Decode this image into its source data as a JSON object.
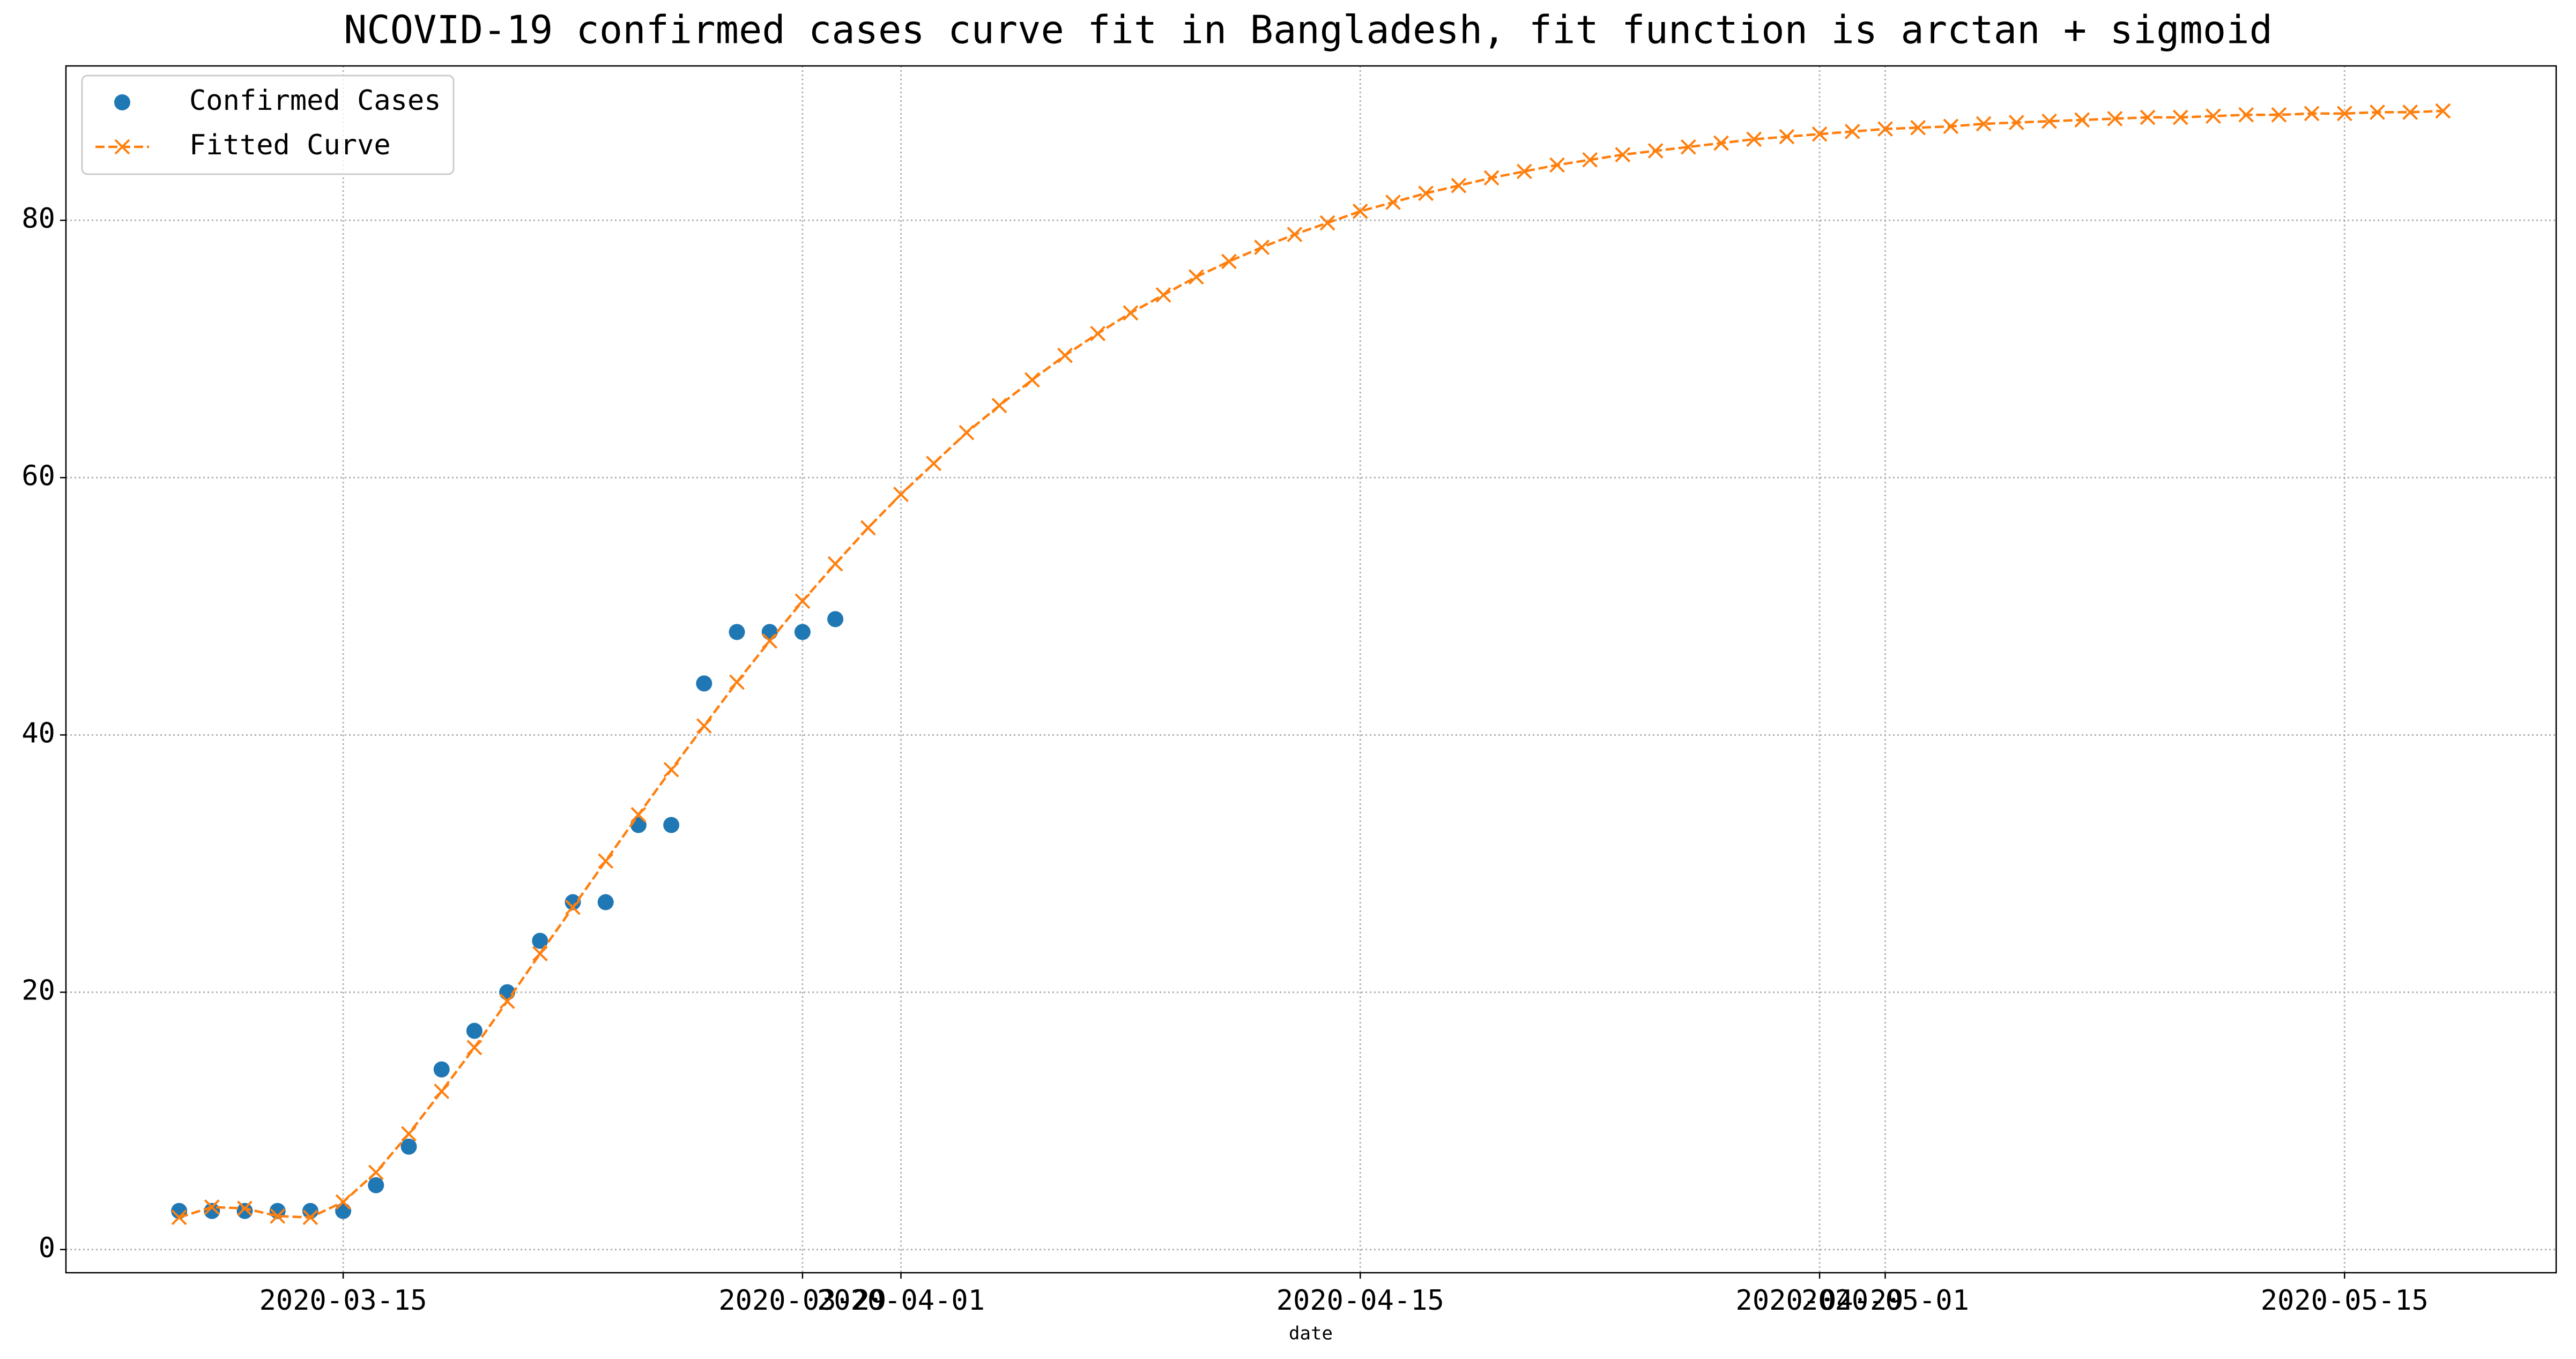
{
  "chart_data": {
    "type": "line",
    "title": "NCOVID-19 confirmed cases curve fit in Bangladesh, fit function is arctan + sigmoid",
    "x_label": "date",
    "xlim": [
      "2020-03-06T13:12",
      "2020-05-21T10:48"
    ],
    "xticks": [
      "2020-03-15",
      "2020-03-29",
      "2020-04-01",
      "2020-04-15",
      "2020-04-29",
      "2020-05-01",
      "2020-05-15"
    ],
    "ylim": [
      -1.8,
      92.0
    ],
    "yticks": [
      0,
      20,
      40,
      60,
      80
    ],
    "grid": true,
    "legend": "upper left",
    "series": [
      {
        "name": "Confirmed Cases",
        "color": "#1f77b4",
        "marker": "circle",
        "linestyle": "none",
        "x": [
          "2020-03-10",
          "2020-03-11",
          "2020-03-12",
          "2020-03-13",
          "2020-03-14",
          "2020-03-15",
          "2020-03-16",
          "2020-03-17",
          "2020-03-18",
          "2020-03-19",
          "2020-03-20",
          "2020-03-21",
          "2020-03-22",
          "2020-03-23",
          "2020-03-24",
          "2020-03-25",
          "2020-03-26",
          "2020-03-27",
          "2020-03-28",
          "2020-03-29",
          "2020-03-30"
        ],
        "values": [
          3,
          3,
          3,
          3,
          3,
          3,
          5,
          8,
          14,
          17,
          20,
          24,
          27,
          27,
          33,
          33,
          44,
          48,
          48,
          48,
          49
        ]
      },
      {
        "name": "Fitted Curve",
        "color": "#ff7f0e",
        "marker": "x",
        "linestyle": "dashed",
        "x": [
          "2020-03-10",
          "2020-03-11",
          "2020-03-12",
          "2020-03-13",
          "2020-03-14",
          "2020-03-15",
          "2020-03-16",
          "2020-03-17",
          "2020-03-18",
          "2020-03-19",
          "2020-03-20",
          "2020-03-21",
          "2020-03-22",
          "2020-03-23",
          "2020-03-24",
          "2020-03-25",
          "2020-03-26",
          "2020-03-27",
          "2020-03-28",
          "2020-03-29",
          "2020-03-30",
          "2020-03-31",
          "2020-04-01",
          "2020-04-02",
          "2020-04-03",
          "2020-04-04",
          "2020-04-05",
          "2020-04-06",
          "2020-04-07",
          "2020-04-08",
          "2020-04-09",
          "2020-04-10",
          "2020-04-11",
          "2020-04-12",
          "2020-04-13",
          "2020-04-14",
          "2020-04-15",
          "2020-04-16",
          "2020-04-17",
          "2020-04-18",
          "2020-04-19",
          "2020-04-20",
          "2020-04-21",
          "2020-04-22",
          "2020-04-23",
          "2020-04-24",
          "2020-04-25",
          "2020-04-26",
          "2020-04-27",
          "2020-04-28",
          "2020-04-29",
          "2020-04-30",
          "2020-05-01",
          "2020-05-02",
          "2020-05-03",
          "2020-05-04",
          "2020-05-05",
          "2020-05-06",
          "2020-05-07",
          "2020-05-08",
          "2020-05-09",
          "2020-05-10",
          "2020-05-11",
          "2020-05-12",
          "2020-05-13",
          "2020-05-14",
          "2020-05-15",
          "2020-05-16",
          "2020-05-17",
          "2020-05-18"
        ],
        "values": [
          2.5,
          3.3,
          3.2,
          2.6,
          2.5,
          3.7,
          6.0,
          9.0,
          12.3,
          15.7,
          19.3,
          23.0,
          26.6,
          30.2,
          33.8,
          37.3,
          40.7,
          44.1,
          47.3,
          50.4,
          53.3,
          56.1,
          58.7,
          61.1,
          63.5,
          65.6,
          67.6,
          69.5,
          71.2,
          72.8,
          74.2,
          75.6,
          76.8,
          77.9,
          78.9,
          79.8,
          80.7,
          81.4,
          82.1,
          82.7,
          83.3,
          83.8,
          84.3,
          84.7,
          85.1,
          85.4,
          85.7,
          86.0,
          86.3,
          86.5,
          86.7,
          86.9,
          87.1,
          87.2,
          87.3,
          87.5,
          87.6,
          87.7,
          87.8,
          87.9,
          88.0,
          88.0,
          88.1,
          88.2,
          88.2,
          88.3,
          88.3,
          88.4,
          88.4,
          88.5
        ]
      }
    ]
  }
}
